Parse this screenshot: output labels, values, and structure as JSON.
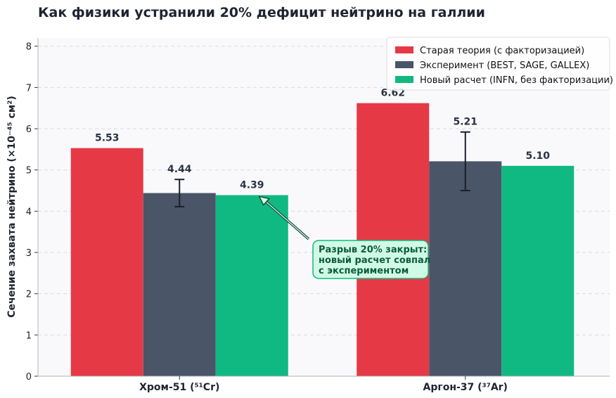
{
  "chart_data": {
    "type": "bar",
    "title": "Как физики устранили 20% дефицит нейтрино на галлии",
    "xlabel": "",
    "ylabel": "Сечение захвата нейтрино (×10⁻⁴⁵ см²)",
    "ylim": [
      0,
      8.2
    ],
    "yticks": [
      0,
      1,
      2,
      3,
      4,
      5,
      6,
      7,
      8
    ],
    "grid": true,
    "legend_position": "top-right",
    "categories": [
      "Хром-51 (⁵¹Cr)",
      "Аргон-37 (³⁷Ar)"
    ],
    "series": [
      {
        "name": "Старая теория (с факторизацией)",
        "color": "#e63946",
        "values": [
          5.53,
          6.62
        ],
        "labels": [
          "5.53",
          "6.62"
        ]
      },
      {
        "name": "Эксперимент (BEST, SAGE, GALLEX)",
        "color": "#4a5568",
        "values": [
          4.44,
          5.21
        ],
        "labels": [
          "4.44",
          "5.21"
        ],
        "error_low": [
          4.11,
          4.5
        ],
        "error_high": [
          4.77,
          5.92
        ]
      },
      {
        "name": "Новый расчет (INFN, без факторизации)",
        "color": "#10b981",
        "values": [
          4.39,
          5.1
        ],
        "labels": [
          "4.39",
          "5.10"
        ]
      }
    ],
    "annotation": {
      "lines": [
        "Разрыв 20% закрыт:",
        "новый расчет совпал",
        "с экспериментом"
      ],
      "target_category": 0,
      "target_series": 2,
      "box_color": "#d1fae5",
      "border_color": "#10b981"
    }
  }
}
